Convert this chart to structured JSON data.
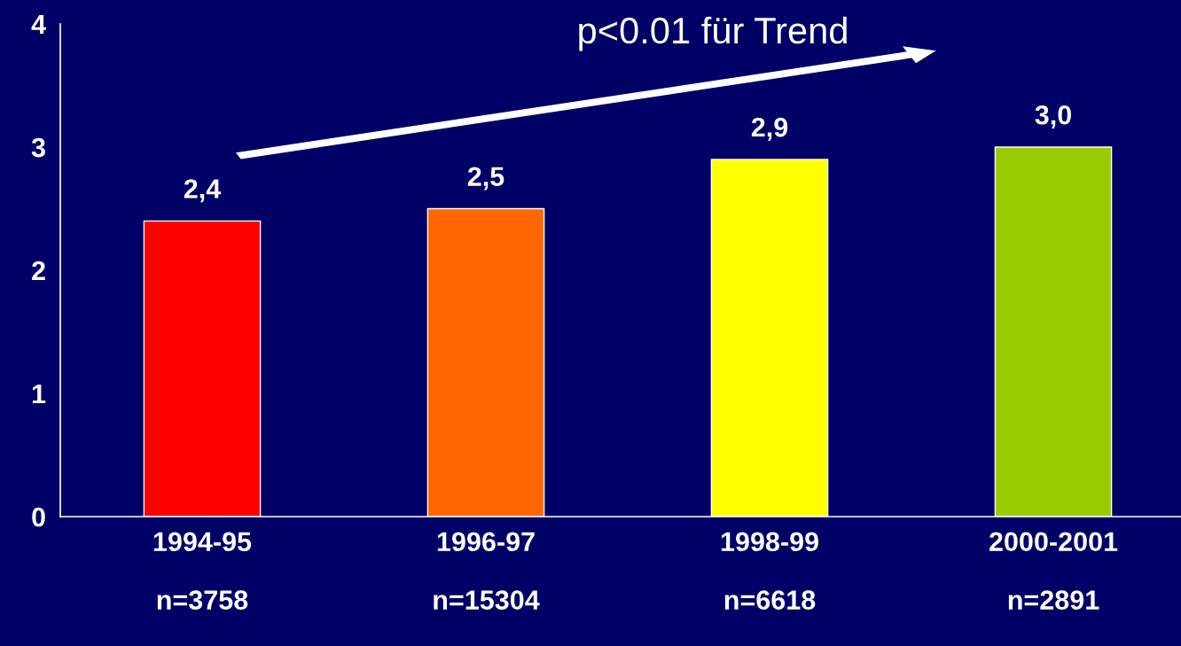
{
  "chart_data": {
    "type": "bar",
    "categories": [
      "1994-95\n\nn=3758",
      "1996-97\n\nn=15304",
      "1998-99\n\nn=6618",
      "2000-2001\n\nn=2891"
    ],
    "values": [
      2.4,
      2.5,
      2.9,
      3.0
    ],
    "value_labels": [
      "2,4",
      "2,5",
      "2,9",
      "3,0"
    ],
    "colors": [
      "#ff0000",
      "#ff6600",
      "#ffff00",
      "#99cc00"
    ],
    "ylim": [
      0,
      4
    ],
    "yticks": [
      0,
      1,
      2,
      3,
      4
    ],
    "grid": false,
    "annotations": [
      "p<0.01 für Trend"
    ]
  }
}
